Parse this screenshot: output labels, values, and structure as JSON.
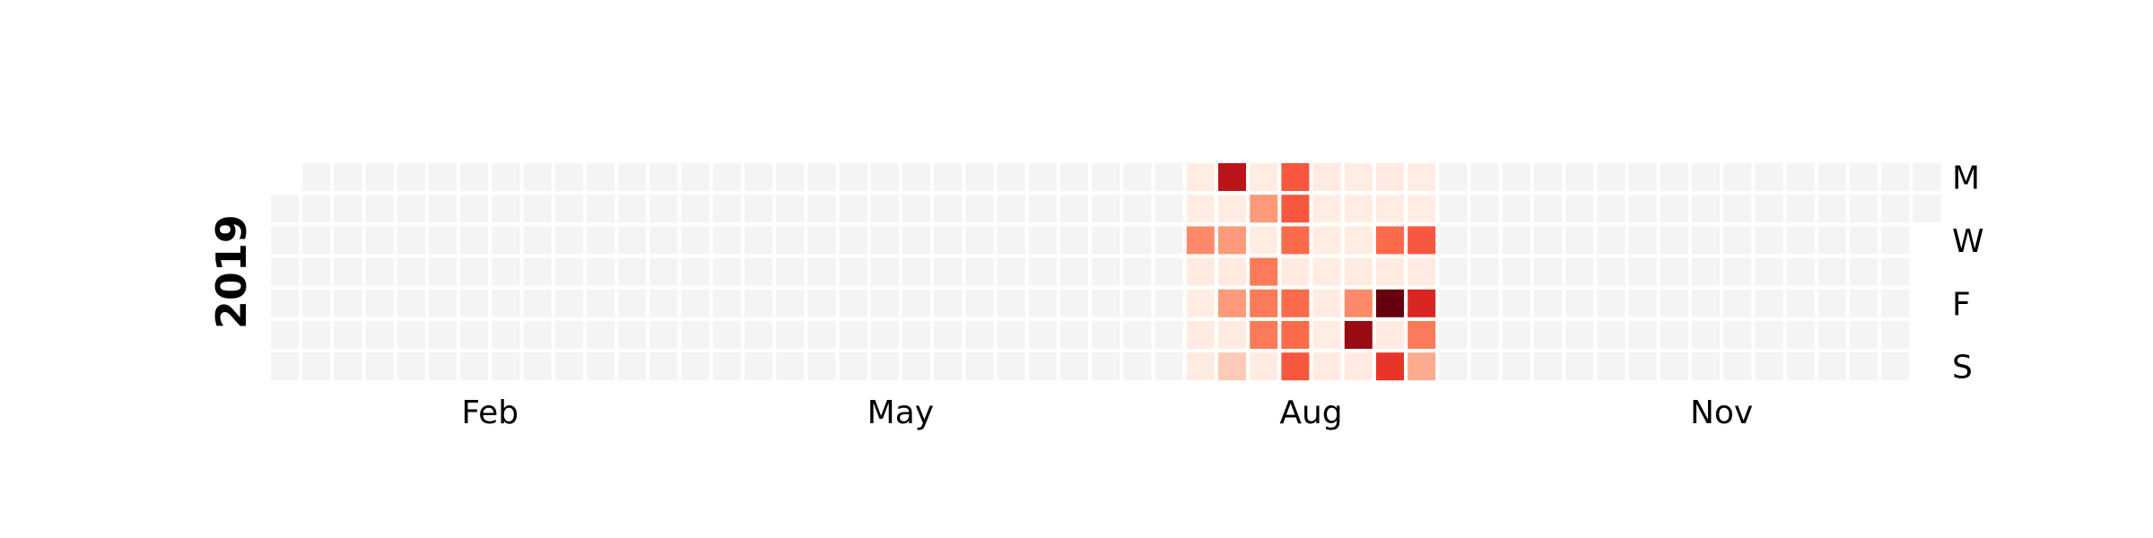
{
  "chart_data": {
    "type": "heatmap",
    "title": "",
    "xlabel": "",
    "ylabel": "",
    "year": "2019",
    "colormap": "Reds",
    "empty_color": "#f4f4f4",
    "grid": false,
    "legend": "none",
    "months": [
      {
        "label": "Feb",
        "week": 6.5
      },
      {
        "label": "May",
        "week": 19.5
      },
      {
        "label": "Aug",
        "week": 32.5
      },
      {
        "label": "Nov",
        "week": 45.5
      }
    ],
    "weekdays": [
      {
        "label": "M",
        "day": 0
      },
      {
        "label": "W",
        "day": 2
      },
      {
        "label": "F",
        "day": 4
      },
      {
        "label": "S",
        "day": 6
      }
    ],
    "value_range": [
      0,
      1
    ],
    "values_by_week": [
      {
        "week": 29,
        "days": [
          0.05,
          0.05,
          0.4,
          0.06,
          0.05,
          0.06,
          0.06
        ]
      },
      {
        "week": 30,
        "days": [
          0.8,
          0.05,
          0.35,
          0.06,
          0.35,
          0.06,
          0.2
        ]
      },
      {
        "week": 31,
        "days": [
          0.05,
          0.35,
          0.05,
          0.45,
          0.45,
          0.45,
          0.06
        ]
      },
      {
        "week": 32,
        "days": [
          0.55,
          0.55,
          0.5,
          0.06,
          0.5,
          0.5,
          0.55
        ]
      },
      {
        "week": 33,
        "days": [
          0.06,
          0.05,
          0.05,
          0.05,
          0.06,
          0.05,
          0.06
        ]
      },
      {
        "week": 34,
        "days": [
          0.05,
          0.05,
          0.05,
          0.06,
          0.4,
          0.9,
          0.06
        ]
      },
      {
        "week": 35,
        "days": [
          0.06,
          0.05,
          0.5,
          0.06,
          1.0,
          0.06,
          0.65
        ]
      },
      {
        "week": 36,
        "days": [
          0.05,
          0.05,
          0.55,
          0.06,
          0.7,
          0.45,
          0.3
        ]
      }
    ]
  }
}
